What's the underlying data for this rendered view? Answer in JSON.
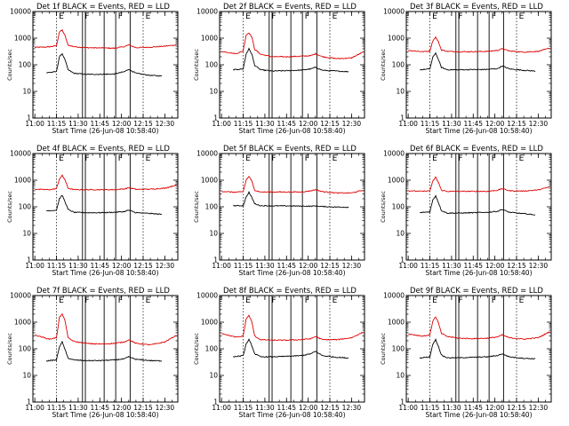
{
  "chart_data": {
    "type": "line",
    "layout": "3x3 grid of panels",
    "xlabel": "Start Time (26-Jun-08 10:58:40)",
    "ylabel": "Counts/sec",
    "x_tick_labels": [
      "11:00",
      "11:15",
      "11:30",
      "11:45",
      "12:00",
      "12:15",
      "12:30"
    ],
    "x_range": [
      "10:58:40",
      "12:39:00"
    ],
    "y_scale": "log",
    "y_range": [
      1,
      10000
    ],
    "y_tick_labels": [
      "1",
      "10",
      "100",
      "1000",
      "10000"
    ],
    "series_colors": {
      "events": "#000000",
      "lld": "#dd0000"
    },
    "markers": {
      "dotted_times": [
        "11:15",
        "12:15"
      ],
      "solid_times": [
        "11:33",
        "11:35",
        "11:48",
        "11:56",
        "12:06"
      ]
    },
    "flags": [
      "E",
      "F",
      "F",
      "E"
    ],
    "panels": [
      {
        "title": "Det 1f BLACK = Events, RED = LLD",
        "series": [
          {
            "times": [
              "11:00",
              "11:10",
              "11:15",
              "11:17",
              "11:19",
              "11:21",
              "11:23",
              "11:27",
              "11:35",
              "11:45",
              "11:55",
              "12:02",
              "12:05",
              "12:10",
              "12:20",
              "12:30",
              "12:38"
            ],
            "values": [
              450,
              470,
              520,
              1700,
              2000,
              1200,
              550,
              480,
              440,
              430,
              420,
              480,
              560,
              440,
              460,
              500,
              560
            ]
          },
          {
            "times": [
              "11:08",
              "11:15",
              "11:17",
              "11:19",
              "11:21",
              "11:23",
              "11:27",
              "11:35",
              "11:45",
              "11:55",
              "12:02",
              "12:05",
              "12:10",
              "12:20",
              "12:28"
            ],
            "values": [
              50,
              55,
              200,
              260,
              150,
              65,
              48,
              44,
              44,
              45,
              55,
              68,
              48,
              40,
              38
            ]
          }
        ]
      },
      {
        "title": "Det 2f BLACK = Events, RED = LLD",
        "series": [
          {
            "times": [
              "11:00",
              "11:10",
              "11:15",
              "11:17",
              "11:19",
              "11:21",
              "11:23",
              "11:27",
              "11:35",
              "11:45",
              "11:55",
              "12:02",
              "12:05",
              "12:10",
              "12:20",
              "12:30",
              "12:38"
            ],
            "values": [
              320,
              260,
              330,
              1300,
              1600,
              1100,
              380,
              250,
              200,
              200,
              210,
              220,
              260,
              200,
              170,
              180,
              300
            ]
          },
          {
            "times": [
              "11:08",
              "11:15",
              "11:17",
              "11:19",
              "11:21",
              "11:23",
              "11:27",
              "11:35",
              "11:45",
              "11:55",
              "12:02",
              "12:05",
              "12:10",
              "12:20",
              "12:28"
            ],
            "values": [
              65,
              70,
              250,
              400,
              250,
              95,
              65,
              58,
              60,
              63,
              70,
              80,
              62,
              58,
              55
            ]
          }
        ]
      },
      {
        "title": "Det 3f BLACK = Events, RED = LLD",
        "series": [
          {
            "times": [
              "11:00",
              "11:10",
              "11:15",
              "11:17",
              "11:19",
              "11:21",
              "11:23",
              "11:27",
              "11:35",
              "11:45",
              "11:55",
              "12:02",
              "12:05",
              "12:10",
              "12:20",
              "12:30",
              "12:38"
            ],
            "values": [
              350,
              310,
              330,
              800,
              1100,
              700,
              360,
              320,
              310,
              310,
              320,
              350,
              400,
              330,
              300,
              320,
              420
            ]
          },
          {
            "times": [
              "11:08",
              "11:15",
              "11:17",
              "11:19",
              "11:21",
              "11:23",
              "11:27",
              "11:35",
              "11:45",
              "11:55",
              "12:02",
              "12:05",
              "12:10",
              "12:20",
              "12:28"
            ],
            "values": [
              65,
              70,
              190,
              280,
              150,
              80,
              65,
              65,
              66,
              67,
              72,
              90,
              70,
              62,
              58
            ]
          }
        ]
      },
      {
        "title": "Det 4f BLACK = Events, RED = LLD",
        "series": [
          {
            "times": [
              "11:00",
              "11:10",
              "11:15",
              "11:17",
              "11:19",
              "11:21",
              "11:23",
              "11:27",
              "11:35",
              "11:45",
              "11:55",
              "12:02",
              "12:05",
              "12:10",
              "12:20",
              "12:30",
              "12:38"
            ],
            "values": [
              450,
              440,
              480,
              1100,
              1500,
              1000,
              500,
              440,
              440,
              440,
              440,
              470,
              520,
              450,
              460,
              500,
              650
            ]
          },
          {
            "times": [
              "11:08",
              "11:15",
              "11:17",
              "11:19",
              "11:21",
              "11:23",
              "11:27",
              "11:35",
              "11:45",
              "11:55",
              "12:02",
              "12:05",
              "12:10",
              "12:20",
              "12:28"
            ],
            "values": [
              70,
              75,
              200,
              270,
              150,
              80,
              62,
              60,
              60,
              62,
              66,
              75,
              60,
              56,
              52
            ]
          }
        ]
      },
      {
        "title": "Det 5f BLACK = Events, RED = LLD",
        "series": [
          {
            "times": [
              "11:00",
              "11:10",
              "11:15",
              "11:17",
              "11:19",
              "11:21",
              "11:23",
              "11:27",
              "11:35",
              "11:45",
              "11:55",
              "12:02",
              "12:05",
              "12:10",
              "12:20",
              "12:30",
              "12:38"
            ],
            "values": [
              380,
              350,
              370,
              1000,
              1400,
              900,
              420,
              360,
              360,
              360,
              360,
              400,
              440,
              370,
              330,
              330,
              420
            ]
          },
          {
            "times": [
              "11:08",
              "11:15",
              "11:17",
              "11:19",
              "11:21",
              "11:23",
              "11:27",
              "11:35",
              "11:45",
              "11:55",
              "12:02",
              "12:05",
              "12:10",
              "12:20",
              "12:28"
            ],
            "values": [
              110,
              110,
              230,
              350,
              220,
              130,
              110,
              108,
              108,
              106,
              105,
              108,
              102,
              98,
              96
            ]
          }
        ]
      },
      {
        "title": "Det 6f BLACK = Events, RED = LLD",
        "series": [
          {
            "times": [
              "11:00",
              "11:10",
              "11:15",
              "11:17",
              "11:19",
              "11:21",
              "11:23",
              "11:27",
              "11:35",
              "11:45",
              "11:55",
              "12:02",
              "12:05",
              "12:10",
              "12:20",
              "12:30",
              "12:38"
            ],
            "values": [
              400,
              380,
              400,
              900,
              1300,
              800,
              420,
              380,
              380,
              380,
              380,
              420,
              480,
              400,
              390,
              430,
              560
            ]
          },
          {
            "times": [
              "11:08",
              "11:15",
              "11:17",
              "11:19",
              "11:21",
              "11:23",
              "11:27",
              "11:35",
              "11:45",
              "11:55",
              "12:02",
              "12:05",
              "12:10",
              "12:20",
              "12:28"
            ],
            "values": [
              60,
              65,
              180,
              260,
              140,
              72,
              58,
              58,
              60,
              62,
              68,
              80,
              62,
              55,
              50
            ]
          }
        ]
      },
      {
        "title": "Det 7f BLACK = Events, RED = LLD",
        "series": [
          {
            "times": [
              "11:00",
              "11:10",
              "11:15",
              "11:17",
              "11:19",
              "11:21",
              "11:23",
              "11:27",
              "11:35",
              "11:45",
              "11:55",
              "12:02",
              "12:05",
              "12:10",
              "12:20",
              "12:30",
              "12:38"
            ],
            "values": [
              330,
              230,
              260,
              1500,
              2000,
              1100,
              260,
              190,
              160,
              150,
              160,
              180,
              220,
              160,
              140,
              180,
              320
            ]
          },
          {
            "times": [
              "11:08",
              "11:15",
              "11:17",
              "11:19",
              "11:21",
              "11:23",
              "11:27",
              "11:35",
              "11:45",
              "11:55",
              "12:02",
              "12:05",
              "12:10",
              "12:20",
              "12:28"
            ],
            "values": [
              35,
              38,
              120,
              180,
              90,
              45,
              38,
              36,
              36,
              38,
              42,
              50,
              40,
              36,
              35
            ]
          }
        ]
      },
      {
        "title": "Det 8f BLACK = Events, RED = LLD",
        "series": [
          {
            "times": [
              "11:00",
              "11:10",
              "11:15",
              "11:17",
              "11:19",
              "11:21",
              "11:23",
              "11:27",
              "11:35",
              "11:45",
              "11:55",
              "12:02",
              "12:05",
              "12:10",
              "12:20",
              "12:30",
              "12:38"
            ],
            "values": [
              380,
              270,
              300,
              1300,
              1800,
              1000,
              300,
              220,
              210,
              210,
              220,
              240,
              290,
              220,
              220,
              260,
              420
            ]
          },
          {
            "times": [
              "11:08",
              "11:15",
              "11:17",
              "11:19",
              "11:21",
              "11:23",
              "11:27",
              "11:35",
              "11:45",
              "11:55",
              "12:02",
              "12:05",
              "12:10",
              "12:20",
              "12:28"
            ],
            "values": [
              50,
              55,
              150,
              220,
              130,
              65,
              50,
              50,
              52,
              55,
              65,
              80,
              55,
              48,
              45
            ]
          }
        ]
      },
      {
        "title": "Det 9f BLACK = Events, RED = LLD",
        "series": [
          {
            "times": [
              "11:00",
              "11:10",
              "11:15",
              "11:17",
              "11:19",
              "11:21",
              "11:23",
              "11:27",
              "11:35",
              "11:45",
              "11:55",
              "12:02",
              "12:05",
              "12:10",
              "12:20",
              "12:30",
              "12:38"
            ],
            "values": [
              360,
              300,
              330,
              1100,
              1600,
              900,
              380,
              290,
              250,
              240,
              250,
              280,
              330,
              260,
              230,
              260,
              440
            ]
          },
          {
            "times": [
              "11:08",
              "11:15",
              "11:17",
              "11:19",
              "11:21",
              "11:23",
              "11:27",
              "11:35",
              "11:45",
              "11:55",
              "12:02",
              "12:05",
              "12:10",
              "12:20",
              "12:28"
            ],
            "values": [
              45,
              50,
              150,
              220,
              120,
              58,
              46,
              46,
              48,
              50,
              56,
              65,
              50,
              44,
              42
            ]
          }
        ]
      }
    ]
  }
}
